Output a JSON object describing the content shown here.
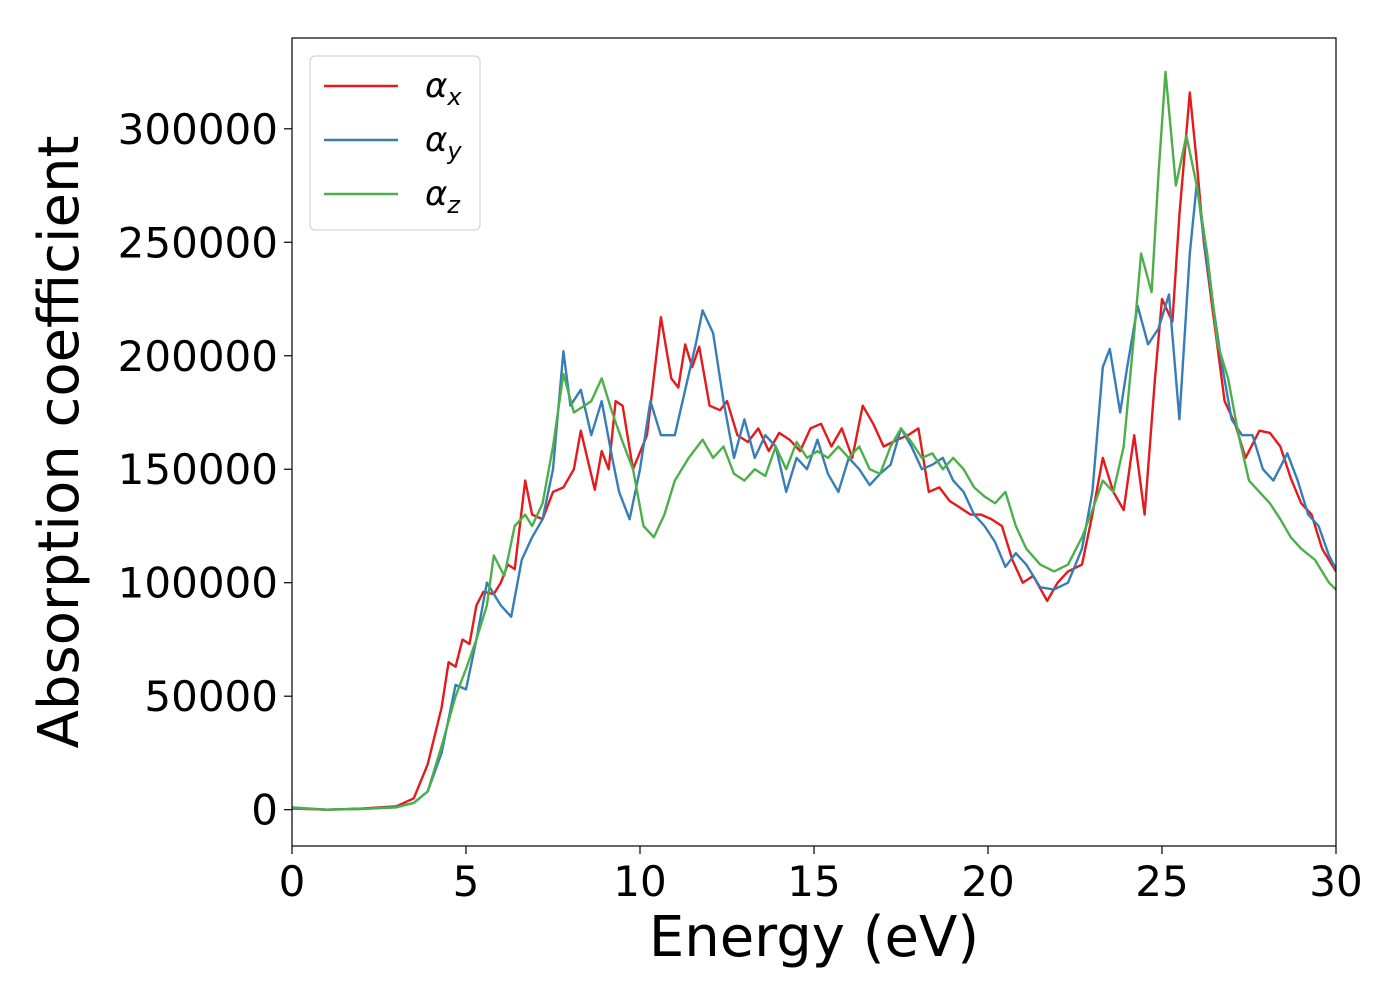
{
  "chart_data": {
    "type": "line",
    "title": "",
    "xlabel": "Energy (eV)",
    "ylabel": "Absorption coefficient",
    "xlim": [
      0,
      30
    ],
    "ylim": [
      -16000,
      340000
    ],
    "xticks": [
      0,
      5,
      10,
      15,
      20,
      25,
      30
    ],
    "xtick_labels": [
      "0",
      "5",
      "10",
      "15",
      "20",
      "25",
      "30"
    ],
    "yticks": [
      0,
      50000,
      100000,
      150000,
      200000,
      250000,
      300000
    ],
    "ytick_labels": [
      "0",
      "50000",
      "100000",
      "150000",
      "200000",
      "250000",
      "300000"
    ],
    "grid": false,
    "legend_position": "top-left",
    "series": [
      {
        "name": "α_x",
        "symbol": "α",
        "subscript": "x",
        "color": "#e41a1c",
        "points": [
          [
            0,
            500
          ],
          [
            1,
            0
          ],
          [
            2,
            500
          ],
          [
            3,
            1500
          ],
          [
            3.5,
            5000
          ],
          [
            3.9,
            20000
          ],
          [
            4.3,
            45000
          ],
          [
            4.5,
            65000
          ],
          [
            4.7,
            63000
          ],
          [
            4.9,
            75000
          ],
          [
            5.1,
            73000
          ],
          [
            5.3,
            90000
          ],
          [
            5.5,
            96000
          ],
          [
            5.8,
            95000
          ],
          [
            6.0,
            100000
          ],
          [
            6.2,
            108000
          ],
          [
            6.4,
            106000
          ],
          [
            6.7,
            145000
          ],
          [
            6.9,
            130000
          ],
          [
            7.2,
            128000
          ],
          [
            7.5,
            140000
          ],
          [
            7.8,
            142000
          ],
          [
            8.1,
            150000
          ],
          [
            8.3,
            167000
          ],
          [
            8.7,
            141000
          ],
          [
            8.9,
            158000
          ],
          [
            9.1,
            150000
          ],
          [
            9.3,
            180000
          ],
          [
            9.5,
            178000
          ],
          [
            9.8,
            150000
          ],
          [
            10.2,
            165000
          ],
          [
            10.6,
            217000
          ],
          [
            10.9,
            190000
          ],
          [
            11.1,
            186000
          ],
          [
            11.3,
            205000
          ],
          [
            11.5,
            195000
          ],
          [
            11.7,
            204000
          ],
          [
            12.0,
            178000
          ],
          [
            12.3,
            176000
          ],
          [
            12.5,
            180000
          ],
          [
            12.8,
            165000
          ],
          [
            13.1,
            162000
          ],
          [
            13.4,
            168000
          ],
          [
            13.7,
            158000
          ],
          [
            14.0,
            166000
          ],
          [
            14.3,
            163000
          ],
          [
            14.6,
            158000
          ],
          [
            14.9,
            168000
          ],
          [
            15.2,
            170000
          ],
          [
            15.5,
            160000
          ],
          [
            15.8,
            168000
          ],
          [
            16.1,
            155000
          ],
          [
            16.4,
            178000
          ],
          [
            16.7,
            170000
          ],
          [
            17.0,
            160000
          ],
          [
            17.4,
            163000
          ],
          [
            17.7,
            165000
          ],
          [
            18.0,
            168000
          ],
          [
            18.3,
            140000
          ],
          [
            18.6,
            142000
          ],
          [
            18.9,
            136000
          ],
          [
            19.2,
            133000
          ],
          [
            19.5,
            130000
          ],
          [
            19.8,
            130000
          ],
          [
            20.1,
            128000
          ],
          [
            20.4,
            125000
          ],
          [
            20.7,
            110000
          ],
          [
            21.0,
            100000
          ],
          [
            21.3,
            103000
          ],
          [
            21.7,
            92000
          ],
          [
            22.0,
            100000
          ],
          [
            22.3,
            105000
          ],
          [
            22.7,
            108000
          ],
          [
            23.0,
            130000
          ],
          [
            23.3,
            155000
          ],
          [
            23.6,
            140000
          ],
          [
            23.9,
            132000
          ],
          [
            24.2,
            165000
          ],
          [
            24.5,
            130000
          ],
          [
            24.8,
            190000
          ],
          [
            25.0,
            225000
          ],
          [
            25.3,
            215000
          ],
          [
            25.5,
            262000
          ],
          [
            25.8,
            316000
          ],
          [
            26.0,
            285000
          ],
          [
            26.2,
            250000
          ],
          [
            26.5,
            215000
          ],
          [
            26.8,
            180000
          ],
          [
            27.1,
            170000
          ],
          [
            27.4,
            155000
          ],
          [
            27.8,
            167000
          ],
          [
            28.1,
            166000
          ],
          [
            28.4,
            160000
          ],
          [
            28.7,
            146000
          ],
          [
            29.0,
            135000
          ],
          [
            29.3,
            130000
          ],
          [
            29.6,
            115000
          ],
          [
            30.0,
            105000
          ]
        ]
      },
      {
        "name": "α_y",
        "symbol": "α",
        "subscript": "y",
        "color": "#377eb8",
        "points": [
          [
            0,
            1000
          ],
          [
            1,
            0
          ],
          [
            2,
            400
          ],
          [
            3,
            1200
          ],
          [
            3.5,
            3000
          ],
          [
            3.9,
            8000
          ],
          [
            4.3,
            25000
          ],
          [
            4.7,
            55000
          ],
          [
            5.0,
            53000
          ],
          [
            5.3,
            75000
          ],
          [
            5.6,
            100000
          ],
          [
            6.0,
            90000
          ],
          [
            6.3,
            85000
          ],
          [
            6.6,
            110000
          ],
          [
            6.9,
            120000
          ],
          [
            7.2,
            128000
          ],
          [
            7.5,
            150000
          ],
          [
            7.8,
            202000
          ],
          [
            8.0,
            178000
          ],
          [
            8.3,
            185000
          ],
          [
            8.6,
            165000
          ],
          [
            8.9,
            180000
          ],
          [
            9.2,
            155000
          ],
          [
            9.4,
            140000
          ],
          [
            9.7,
            128000
          ],
          [
            10.0,
            150000
          ],
          [
            10.3,
            180000
          ],
          [
            10.6,
            165000
          ],
          [
            11.0,
            165000
          ],
          [
            11.3,
            185000
          ],
          [
            11.6,
            205000
          ],
          [
            11.8,
            220000
          ],
          [
            12.1,
            210000
          ],
          [
            12.4,
            180000
          ],
          [
            12.7,
            155000
          ],
          [
            13.0,
            172000
          ],
          [
            13.3,
            155000
          ],
          [
            13.6,
            165000
          ],
          [
            13.9,
            160000
          ],
          [
            14.2,
            140000
          ],
          [
            14.5,
            155000
          ],
          [
            14.8,
            150000
          ],
          [
            15.1,
            163000
          ],
          [
            15.4,
            148000
          ],
          [
            15.7,
            140000
          ],
          [
            16.0,
            155000
          ],
          [
            16.3,
            150000
          ],
          [
            16.6,
            143000
          ],
          [
            16.9,
            148000
          ],
          [
            17.2,
            152000
          ],
          [
            17.5,
            168000
          ],
          [
            17.8,
            160000
          ],
          [
            18.1,
            150000
          ],
          [
            18.4,
            152000
          ],
          [
            18.7,
            155000
          ],
          [
            19.0,
            145000
          ],
          [
            19.3,
            140000
          ],
          [
            19.6,
            130000
          ],
          [
            19.9,
            125000
          ],
          [
            20.2,
            118000
          ],
          [
            20.5,
            107000
          ],
          [
            20.8,
            113000
          ],
          [
            21.1,
            108000
          ],
          [
            21.5,
            98000
          ],
          [
            21.9,
            97000
          ],
          [
            22.3,
            100000
          ],
          [
            22.7,
            115000
          ],
          [
            23.0,
            140000
          ],
          [
            23.3,
            195000
          ],
          [
            23.5,
            203000
          ],
          [
            23.8,
            175000
          ],
          [
            24.0,
            195000
          ],
          [
            24.3,
            222000
          ],
          [
            24.6,
            205000
          ],
          [
            24.9,
            212000
          ],
          [
            25.2,
            227000
          ],
          [
            25.5,
            172000
          ],
          [
            25.8,
            245000
          ],
          [
            26.0,
            276000
          ],
          [
            26.3,
            240000
          ],
          [
            26.7,
            198000
          ],
          [
            27.0,
            172000
          ],
          [
            27.3,
            165000
          ],
          [
            27.6,
            165000
          ],
          [
            27.9,
            150000
          ],
          [
            28.2,
            145000
          ],
          [
            28.6,
            157000
          ],
          [
            28.9,
            145000
          ],
          [
            29.2,
            130000
          ],
          [
            29.5,
            125000
          ],
          [
            29.8,
            112000
          ],
          [
            30.0,
            106000
          ]
        ]
      },
      {
        "name": "α_z",
        "symbol": "α",
        "subscript": "z",
        "color": "#4daf4a",
        "points": [
          [
            0,
            800
          ],
          [
            1,
            0
          ],
          [
            2,
            300
          ],
          [
            3,
            1000
          ],
          [
            3.5,
            3000
          ],
          [
            3.9,
            8000
          ],
          [
            4.3,
            28000
          ],
          [
            4.7,
            50000
          ],
          [
            5.0,
            62000
          ],
          [
            5.3,
            75000
          ],
          [
            5.6,
            90000
          ],
          [
            5.8,
            112000
          ],
          [
            6.1,
            103000
          ],
          [
            6.4,
            125000
          ],
          [
            6.7,
            130000
          ],
          [
            6.9,
            125000
          ],
          [
            7.2,
            135000
          ],
          [
            7.5,
            160000
          ],
          [
            7.8,
            192000
          ],
          [
            8.1,
            175000
          ],
          [
            8.4,
            178000
          ],
          [
            8.6,
            180000
          ],
          [
            8.9,
            190000
          ],
          [
            9.2,
            175000
          ],
          [
            9.5,
            162000
          ],
          [
            9.8,
            150000
          ],
          [
            10.1,
            125000
          ],
          [
            10.4,
            120000
          ],
          [
            10.7,
            130000
          ],
          [
            11.0,
            145000
          ],
          [
            11.4,
            155000
          ],
          [
            11.8,
            163000
          ],
          [
            12.1,
            155000
          ],
          [
            12.4,
            160000
          ],
          [
            12.7,
            148000
          ],
          [
            13.0,
            145000
          ],
          [
            13.3,
            150000
          ],
          [
            13.6,
            147000
          ],
          [
            13.9,
            160000
          ],
          [
            14.2,
            150000
          ],
          [
            14.5,
            162000
          ],
          [
            14.8,
            155000
          ],
          [
            15.1,
            158000
          ],
          [
            15.4,
            155000
          ],
          [
            15.7,
            160000
          ],
          [
            16.0,
            155000
          ],
          [
            16.3,
            160000
          ],
          [
            16.6,
            150000
          ],
          [
            16.9,
            148000
          ],
          [
            17.2,
            160000
          ],
          [
            17.5,
            168000
          ],
          [
            17.8,
            162000
          ],
          [
            18.1,
            155000
          ],
          [
            18.4,
            157000
          ],
          [
            18.7,
            150000
          ],
          [
            19.0,
            155000
          ],
          [
            19.3,
            150000
          ],
          [
            19.6,
            142000
          ],
          [
            19.9,
            138000
          ],
          [
            20.2,
            135000
          ],
          [
            20.5,
            140000
          ],
          [
            20.8,
            125000
          ],
          [
            21.1,
            115000
          ],
          [
            21.5,
            108000
          ],
          [
            21.9,
            105000
          ],
          [
            22.3,
            108000
          ],
          [
            22.7,
            120000
          ],
          [
            23.0,
            132000
          ],
          [
            23.3,
            145000
          ],
          [
            23.6,
            140000
          ],
          [
            23.9,
            160000
          ],
          [
            24.2,
            210000
          ],
          [
            24.4,
            245000
          ],
          [
            24.7,
            228000
          ],
          [
            24.9,
            280000
          ],
          [
            25.1,
            325000
          ],
          [
            25.4,
            275000
          ],
          [
            25.7,
            297000
          ],
          [
            26.0,
            275000
          ],
          [
            26.3,
            245000
          ],
          [
            26.6,
            205000
          ],
          [
            26.9,
            190000
          ],
          [
            27.2,
            165000
          ],
          [
            27.5,
            145000
          ],
          [
            27.8,
            140000
          ],
          [
            28.1,
            135000
          ],
          [
            28.4,
            128000
          ],
          [
            28.7,
            120000
          ],
          [
            29.0,
            115000
          ],
          [
            29.4,
            110000
          ],
          [
            29.8,
            100000
          ],
          [
            30.0,
            97000
          ]
        ]
      }
    ]
  }
}
